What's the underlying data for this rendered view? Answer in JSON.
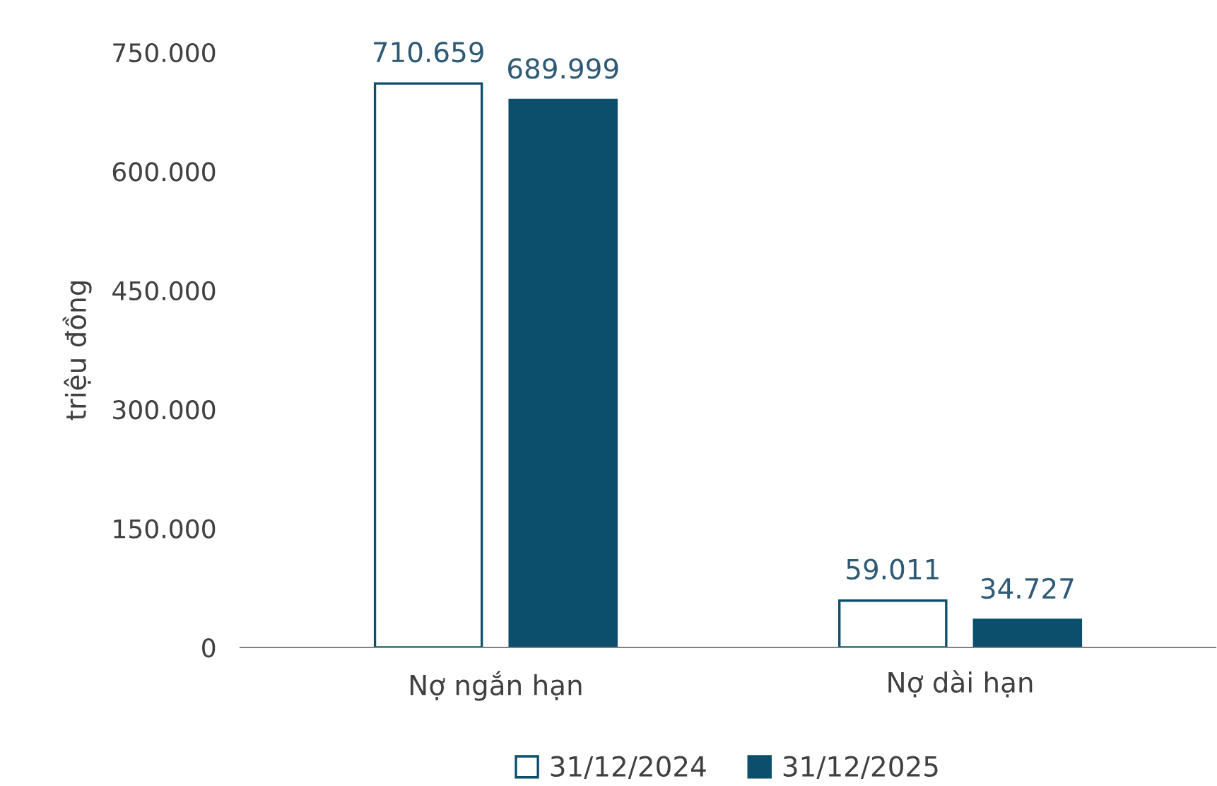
{
  "chart_data": {
    "type": "bar",
    "ylabel": "triệu đồng",
    "categories": [
      "Nợ ngắn hạn",
      "Nợ dài hạn"
    ],
    "series": [
      {
        "name": "31/12/2024",
        "color": "#ffffff",
        "values": [
          710659,
          59011
        ],
        "value_labels": [
          "710.659",
          "59.011"
        ]
      },
      {
        "name": "31/12/2025",
        "color": "#0b4f6c",
        "values": [
          689999,
          34727
        ],
        "value_labels": [
          "689.999",
          "34.727"
        ]
      }
    ],
    "ylim": [
      0,
      750000
    ],
    "yticks": [
      {
        "value": 0,
        "label": "0"
      },
      {
        "value": 150000,
        "label": "150.000"
      },
      {
        "value": 300000,
        "label": "300.000"
      },
      {
        "value": 450000,
        "label": "450.000"
      },
      {
        "value": 600000,
        "label": "600.000"
      },
      {
        "value": 750000,
        "label": "750.000"
      }
    ],
    "grid": false,
    "legend": "bottom"
  }
}
